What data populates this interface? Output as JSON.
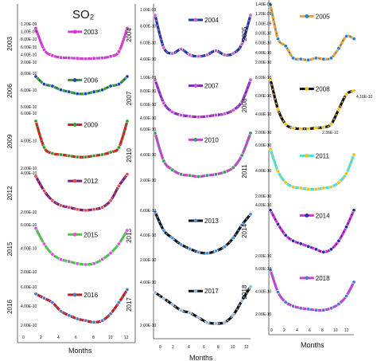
{
  "figure": {
    "title": "SO₂"
  },
  "chart_data": [
    {
      "type": "line",
      "year": "2003",
      "series_color": "#d040d0",
      "marker_color": "#d040d0",
      "legend": "2003",
      "ytick_labels": [
        "1.20E-09",
        "1.00E-09",
        "8.00E-10",
        "6.00E-10",
        "4.00E-10",
        "2.00E-10"
      ],
      "x": [
        1,
        2,
        3,
        4,
        5,
        6,
        7,
        8,
        9,
        10,
        11,
        12
      ],
      "values": [
        1.1,
        0.55,
        0.4,
        0.35,
        0.34,
        0.33,
        0.32,
        0.33,
        0.34,
        0.38,
        0.5,
        1.1
      ],
      "ylim": [
        0.15,
        1.25
      ]
    },
    {
      "type": "line",
      "year": "2004",
      "series_color": "#1a3aa0",
      "marker_color": "#d060d0",
      "legend": "2004",
      "ytick_labels": [
        "1.00E-09",
        "8.00E-10",
        "6.00E-10",
        "4.00E-10"
      ],
      "x": [
        1,
        2,
        3,
        4,
        5,
        6,
        7,
        8,
        9,
        10,
        11,
        12
      ],
      "values": [
        0.95,
        0.5,
        0.42,
        0.48,
        0.4,
        0.38,
        0.4,
        0.46,
        0.4,
        0.42,
        0.55,
        0.95
      ],
      "ylim": [
        0.3,
        1.05
      ]
    },
    {
      "type": "line",
      "year": "2005",
      "series_color": "#f0a030",
      "marker_color": "#2a80d0",
      "legend": "2005",
      "ytick_labels": [
        "1.40E-09",
        "1.20E-09",
        "1.00E-09",
        "8.00E-10",
        "6.00E-10",
        "4.00E-10",
        "2.00E-10"
      ],
      "x": [
        1,
        2,
        3,
        4,
        5,
        6,
        7,
        8,
        9,
        10,
        11,
        12
      ],
      "values": [
        1.4,
        0.7,
        0.55,
        0.3,
        0.28,
        0.26,
        0.3,
        0.28,
        0.3,
        0.5,
        0.75,
        0.7
      ],
      "ylim": [
        0.15,
        1.45
      ]
    },
    {
      "type": "line",
      "year": "2006",
      "series_color": "#30a030",
      "marker_color": "#2040c0",
      "legend": "2006",
      "ytick_labels": [
        "8.00E-10",
        "6.00E-10",
        "5.00E-10"
      ],
      "x": [
        1,
        2,
        3,
        4,
        5,
        6,
        7,
        8,
        9,
        10,
        11,
        12
      ],
      "values": [
        0.8,
        0.72,
        0.7,
        0.66,
        0.64,
        0.62,
        0.62,
        0.64,
        0.66,
        0.7,
        0.72,
        0.8
      ],
      "ylim": [
        0.45,
        0.85
      ]
    },
    {
      "type": "line",
      "year": "2007",
      "series_color": "#8030c0",
      "marker_color": "#d050d0",
      "legend": "2007",
      "ytick_labels": [
        "1.00E-09",
        "8.00E-10",
        "6.00E-10",
        "4.00E-10"
      ],
      "x": [
        1,
        2,
        3,
        4,
        5,
        6,
        7,
        8,
        9,
        10,
        11,
        12
      ],
      "values": [
        0.98,
        0.6,
        0.45,
        0.4,
        0.38,
        0.37,
        0.38,
        0.4,
        0.42,
        0.48,
        0.62,
        0.98
      ],
      "ylim": [
        0.3,
        1.05
      ]
    },
    {
      "type": "line",
      "year": "2008",
      "series_color": "#101010",
      "marker_color": "#f0c020",
      "legend": "2008",
      "ytick_labels": [
        "8.00E-10",
        "6.00E-10",
        "4.00E-10",
        "2.00E-10"
      ],
      "annotations": [
        "4.16E-10",
        "2.36E-10"
      ],
      "x": [
        1,
        2,
        3,
        4,
        5,
        6,
        7,
        8,
        9,
        10,
        11,
        12
      ],
      "values": [
        0.9,
        0.5,
        0.3,
        0.25,
        0.24,
        0.24,
        0.25,
        0.26,
        0.3,
        0.5,
        0.7,
        0.75
      ],
      "ylim": [
        0.15,
        0.95
      ]
    },
    {
      "type": "line",
      "year": "2009",
      "series_color": "#d02020",
      "marker_color": "#30a030",
      "legend": "2009",
      "ytick_labels": [
        "6.00E-10",
        "4.00E-10",
        "2.00E-10"
      ],
      "x": [
        1,
        2,
        3,
        4,
        5,
        6,
        7,
        8,
        9,
        10,
        11,
        12
      ],
      "values": [
        0.62,
        0.4,
        0.35,
        0.34,
        0.33,
        0.32,
        0.32,
        0.33,
        0.34,
        0.36,
        0.4,
        0.62
      ],
      "ylim": [
        0.2,
        0.7
      ]
    },
    {
      "type": "line",
      "year": "2010",
      "series_color": "#d040d0",
      "marker_color": "#30a060",
      "legend": "2010",
      "ytick_labels": [
        "6.00E-10",
        "4.00E-10",
        "2.00E-10"
      ],
      "x": [
        1,
        2,
        3,
        4,
        5,
        6,
        7,
        8,
        9,
        10,
        11,
        12
      ],
      "values": [
        0.65,
        0.4,
        0.32,
        0.28,
        0.27,
        0.26,
        0.27,
        0.28,
        0.3,
        0.34,
        0.45,
        0.65
      ],
      "ylim": [
        0.2,
        0.7
      ]
    },
    {
      "type": "line",
      "year": "2011",
      "series_color": "#40e0e0",
      "marker_color": "#f0c020",
      "legend": "2011",
      "ytick_labels": [
        "6.00E-10",
        "4.00E-10",
        "2.00E-10"
      ],
      "x": [
        1,
        2,
        3,
        4,
        5,
        6,
        7,
        8,
        9,
        10,
        11,
        12
      ],
      "values": [
        0.6,
        0.4,
        0.3,
        0.26,
        0.25,
        0.24,
        0.24,
        0.25,
        0.26,
        0.3,
        0.38,
        0.55
      ],
      "ylim": [
        0.15,
        0.65
      ]
    },
    {
      "type": "line",
      "year": "2012",
      "series_color": "#702080",
      "marker_color": "#e05050",
      "legend": "2012",
      "ytick_labels": [
        "4.00E-10",
        "2.00E-10"
      ],
      "x": [
        1,
        2,
        3,
        4,
        5,
        6,
        7,
        8,
        9,
        10,
        11,
        12
      ],
      "values": [
        0.6,
        0.45,
        0.35,
        0.3,
        0.28,
        0.26,
        0.25,
        0.26,
        0.28,
        0.35,
        0.5,
        0.62
      ],
      "ylim": [
        0.2,
        0.65
      ]
    },
    {
      "type": "line",
      "year": "2013",
      "series_color": "#101010",
      "marker_color": "#4a90e0",
      "legend": "2013",
      "ytick_labels": [
        "6.00E-10",
        "4.00E-10",
        "2.00E-10"
      ],
      "x": [
        1,
        2,
        3,
        4,
        5,
        6,
        7,
        8,
        9,
        10,
        11,
        12
      ],
      "values": [
        0.62,
        0.45,
        0.38,
        0.32,
        0.28,
        0.25,
        0.24,
        0.26,
        0.3,
        0.38,
        0.5,
        0.6
      ],
      "ylim": [
        0.15,
        0.65
      ]
    },
    {
      "type": "line",
      "year": "2014",
      "series_color": "#d030d0",
      "marker_color": "#2030a0",
      "legend": "2014",
      "ytick_labels": [
        "4.00E-10",
        "2.00E-10"
      ],
      "x": [
        1,
        2,
        3,
        4,
        5,
        6,
        7,
        8,
        9,
        10,
        11,
        12
      ],
      "values": [
        0.5,
        0.4,
        0.32,
        0.28,
        0.26,
        0.24,
        0.22,
        0.2,
        0.22,
        0.28,
        0.38,
        0.5
      ],
      "ylim": [
        0.15,
        0.55
      ]
    },
    {
      "type": "line",
      "year": "2015",
      "series_color": "#40d040",
      "marker_color": "#e050e0",
      "legend": "2015",
      "ytick_labels": [
        "6.00E-10",
        "4.00E-10",
        "2.00E-10"
      ],
      "x": [
        1,
        2,
        3,
        4,
        5,
        6,
        7,
        8,
        9,
        10,
        11,
        12
      ],
      "values": [
        0.6,
        0.45,
        0.35,
        0.3,
        0.28,
        0.26,
        0.25,
        0.26,
        0.3,
        0.36,
        0.45,
        0.58
      ],
      "ylim": [
        0.15,
        0.65
      ]
    },
    {
      "type": "line",
      "year": "2016",
      "series_color": "#c02020",
      "marker_color": "#4a7ad0",
      "legend": "2016",
      "ytick_labels": [
        "6.00E-10",
        "4.00E-10",
        "2.00E-10"
      ],
      "x": [
        1,
        2,
        3,
        4,
        5,
        6,
        7,
        8,
        9,
        10,
        11,
        12
      ],
      "values": [
        0.55,
        0.5,
        0.45,
        0.35,
        0.3,
        0.26,
        0.24,
        0.22,
        0.24,
        0.32,
        0.45,
        0.6
      ],
      "ylim": [
        0.15,
        0.65
      ]
    },
    {
      "type": "line",
      "year": "2017",
      "series_color": "#101010",
      "marker_color": "#9ab8e0",
      "legend": "2017",
      "ytick_labels": [
        "4.00E-10",
        "2.00E-10"
      ],
      "x": [
        1,
        2,
        3,
        4,
        5,
        6,
        7,
        8,
        9,
        10,
        11,
        12
      ],
      "values": [
        0.45,
        0.4,
        0.35,
        0.3,
        0.28,
        0.24,
        0.2,
        0.19,
        0.2,
        0.26,
        0.38,
        0.5
      ],
      "ylim": [
        0.15,
        0.55
      ]
    },
    {
      "type": "line",
      "year": "2018",
      "series_color": "#d040d0",
      "marker_color": "#4a7ad0",
      "legend": "2018",
      "ytick_labels": [
        "6.00E-10",
        "4.00E-10",
        "2.00E-10"
      ],
      "x": [
        1,
        2,
        3,
        4,
        5,
        6,
        7,
        8,
        9,
        10,
        11,
        12
      ],
      "values": [
        0.62,
        0.4,
        0.3,
        0.26,
        0.24,
        0.23,
        0.22,
        0.22,
        0.24,
        0.28,
        0.36,
        0.5
      ],
      "ylim": [
        0.15,
        0.65
      ]
    }
  ],
  "axes": {
    "xlabel": "Months",
    "xticks": [
      "0",
      "2",
      "4",
      "6",
      "8",
      "10",
      "12"
    ]
  }
}
